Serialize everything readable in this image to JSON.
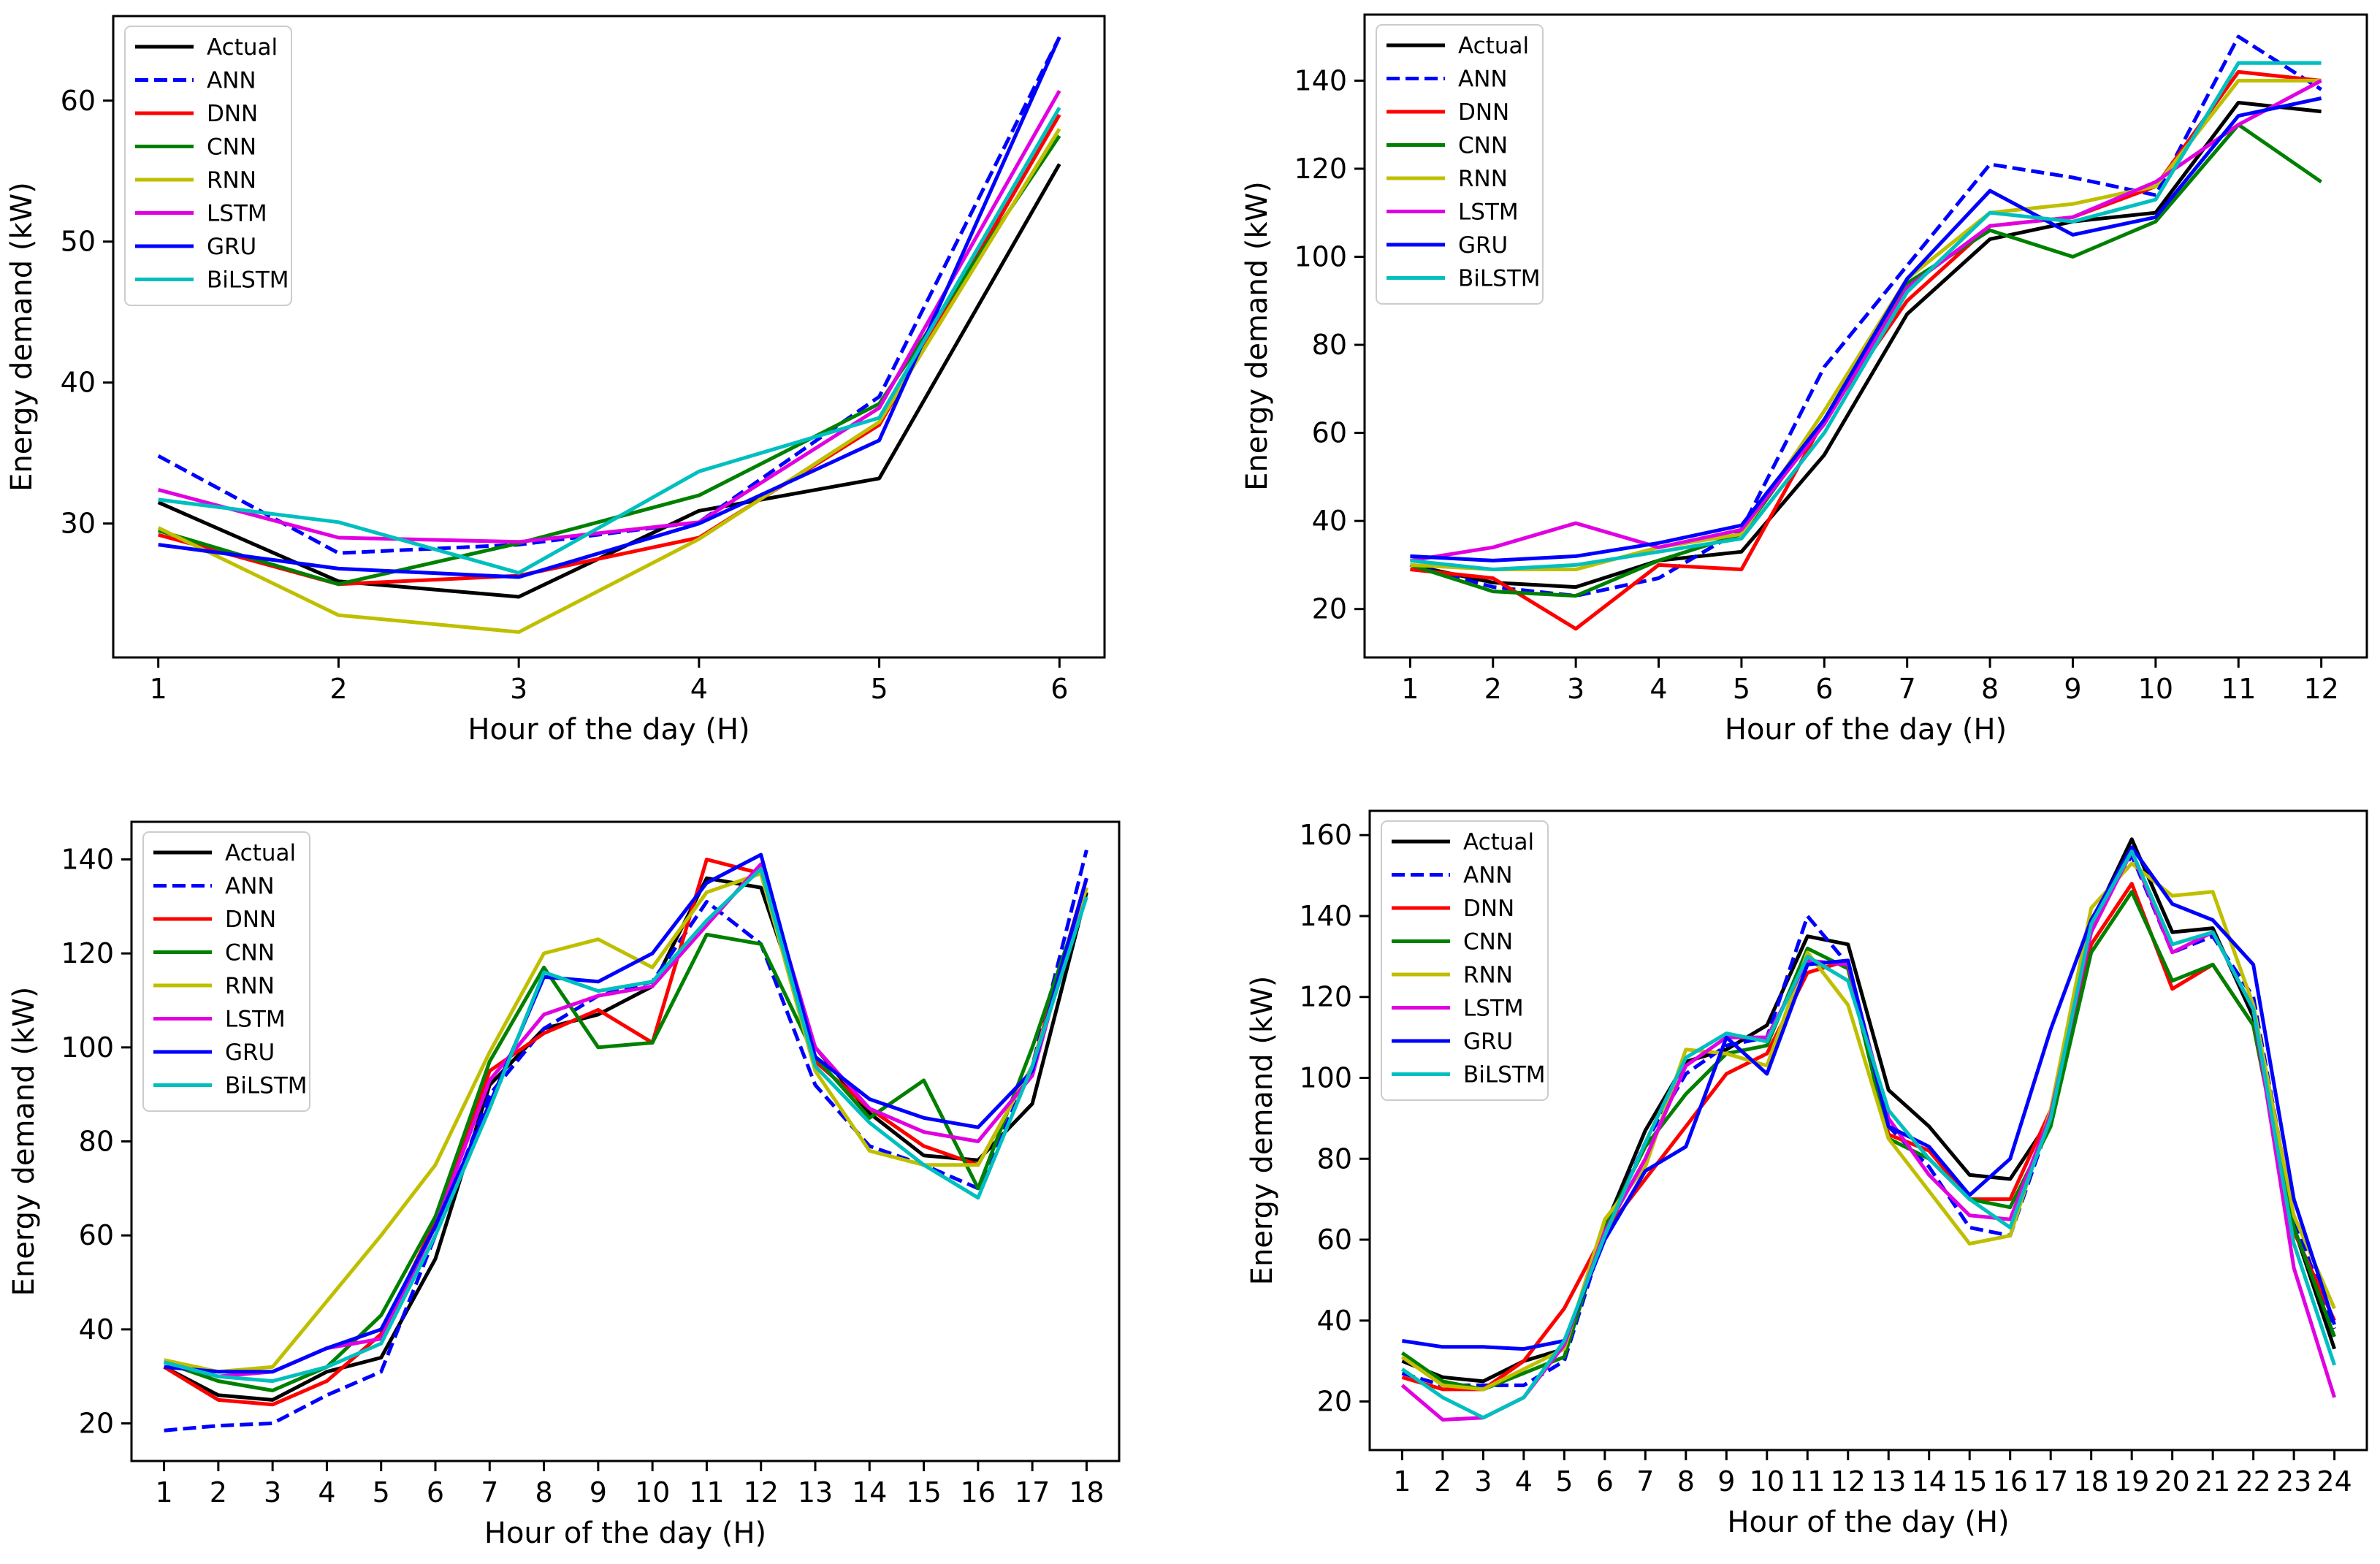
{
  "chart_data": [
    {
      "type": "line",
      "xlabel": "Hour of the day (H)",
      "ylabel": "Energy demand (kW)",
      "x": [
        1,
        2,
        3,
        4,
        5,
        6
      ],
      "xlim": [
        0.75,
        6.25
      ],
      "ylim": [
        20.5,
        66
      ],
      "yticks": [
        30,
        40,
        50,
        60
      ],
      "legend_loc": "upper-left",
      "series": [
        {
          "name": "Actual",
          "values": [
            31.5,
            25.9,
            24.8,
            30.9,
            33.2,
            55.5
          ]
        },
        {
          "name": "ANN",
          "values": [
            34.8,
            27.9,
            28.5,
            30.1,
            39.0,
            64.5
          ]
        },
        {
          "name": "DNN",
          "values": [
            29.2,
            25.7,
            26.3,
            29.0,
            37.0,
            59.0
          ]
        },
        {
          "name": "CNN",
          "values": [
            29.5,
            25.7,
            28.6,
            32.0,
            38.5,
            57.5
          ]
        },
        {
          "name": "RNN",
          "values": [
            29.7,
            23.5,
            22.3,
            28.9,
            37.2,
            58.0
          ]
        },
        {
          "name": "LSTM",
          "values": [
            32.4,
            29.0,
            28.7,
            30.1,
            38.2,
            60.7
          ]
        },
        {
          "name": "GRU",
          "values": [
            28.5,
            26.8,
            26.2,
            30.0,
            35.9,
            64.5
          ]
        },
        {
          "name": "BiLSTM",
          "values": [
            31.7,
            30.1,
            26.5,
            33.7,
            37.5,
            59.5
          ]
        }
      ]
    },
    {
      "type": "line",
      "xlabel": "Hour of the day (H)",
      "ylabel": "Energy demand (kW)",
      "x": [
        1,
        2,
        3,
        4,
        5,
        6,
        7,
        8,
        9,
        10,
        11,
        12
      ],
      "xlim": [
        0.45,
        12.55
      ],
      "ylim": [
        9,
        155
      ],
      "yticks": [
        20,
        40,
        60,
        80,
        100,
        120,
        140
      ],
      "legend_loc": "upper-left",
      "series": [
        {
          "name": "Actual",
          "values": [
            30,
            26,
            25,
            31,
            33,
            55,
            87,
            104,
            108,
            110,
            135,
            133
          ]
        },
        {
          "name": "ANN",
          "values": [
            30,
            25,
            23,
            27,
            38,
            75,
            98,
            121,
            118,
            114,
            150,
            138
          ]
        },
        {
          "name": "DNN",
          "values": [
            29,
            27,
            15.5,
            30,
            29,
            63,
            90,
            107,
            109,
            116,
            142,
            140
          ]
        },
        {
          "name": "CNN",
          "values": [
            30,
            24,
            23,
            31,
            37,
            63,
            94,
            106,
            100,
            108,
            130,
            117
          ]
        },
        {
          "name": "RNN",
          "values": [
            30,
            29,
            29,
            34,
            37,
            65,
            95,
            110,
            112,
            116,
            140,
            140
          ]
        },
        {
          "name": "LSTM",
          "values": [
            31,
            34,
            39.5,
            34,
            38,
            62,
            93,
            107,
            109,
            117,
            130,
            140
          ]
        },
        {
          "name": "GRU",
          "values": [
            32,
            31,
            32,
            35,
            39,
            63,
            95,
            115,
            105,
            109,
            132,
            136
          ]
        },
        {
          "name": "BiLSTM",
          "values": [
            31,
            29,
            30,
            33,
            36,
            60,
            92,
            110,
            108,
            113,
            144,
            144
          ]
        }
      ]
    },
    {
      "type": "line",
      "xlabel": "Hour of the day (H)",
      "ylabel": "Energy demand (kW)",
      "x": [
        1,
        2,
        3,
        4,
        5,
        6,
        7,
        8,
        9,
        10,
        11,
        12,
        13,
        14,
        15,
        16,
        17,
        18
      ],
      "xlim": [
        0.4,
        18.6
      ],
      "ylim": [
        12,
        148
      ],
      "yticks": [
        20,
        40,
        60,
        80,
        100,
        120,
        140
      ],
      "legend_loc": "upper-left",
      "series": [
        {
          "name": "Actual",
          "values": [
            32,
            26,
            25,
            31,
            34,
            55,
            92,
            104,
            107,
            113,
            136,
            134,
            100,
            86,
            77,
            76,
            88,
            133
          ]
        },
        {
          "name": "ANN",
          "values": [
            18.5,
            19.5,
            20,
            26,
            31,
            60,
            90,
            104,
            111,
            114,
            131,
            122,
            92,
            79,
            75,
            70,
            96,
            142
          ]
        },
        {
          "name": "DNN",
          "values": [
            32,
            25,
            24,
            29,
            39,
            63,
            95,
            103,
            108,
            101,
            140,
            137,
            97,
            87,
            79,
            75,
            96,
            136
          ]
        },
        {
          "name": "CNN",
          "values": [
            33,
            29,
            27,
            32,
            43,
            64,
            97,
            117,
            100,
            101,
            124,
            122,
            98,
            85,
            93,
            70,
            100,
            134
          ]
        },
        {
          "name": "RNN",
          "values": [
            33.5,
            31,
            32,
            46,
            60,
            75,
            99,
            120,
            123,
            117,
            133,
            137,
            95,
            78,
            75,
            75,
            96,
            134
          ]
        },
        {
          "name": "LSTM",
          "values": [
            33,
            30,
            31,
            36,
            38,
            62,
            93,
            107,
            111,
            113,
            126,
            139,
            100,
            87,
            82,
            80,
            94,
            136
          ]
        },
        {
          "name": "GRU",
          "values": [
            32,
            31,
            31,
            36,
            40,
            62,
            88,
            115,
            114,
            120,
            135,
            141,
            98,
            89,
            85,
            83,
            95,
            136
          ]
        },
        {
          "name": "BiLSTM",
          "values": [
            33,
            30,
            29,
            32,
            37,
            60,
            87,
            116,
            112,
            114,
            127,
            138,
            96,
            84,
            75,
            68,
            96,
            132
          ]
        }
      ]
    },
    {
      "type": "line",
      "xlabel": "Hour of the day (H)",
      "ylabel": "Energy demand (kW)",
      "x": [
        1,
        2,
        3,
        4,
        5,
        6,
        7,
        8,
        9,
        10,
        11,
        12,
        13,
        14,
        15,
        16,
        17,
        18,
        19,
        20,
        21,
        22,
        23,
        24
      ],
      "xlim": [
        0.2,
        24.8
      ],
      "ylim": [
        8,
        166
      ],
      "yticks": [
        20,
        40,
        60,
        80,
        100,
        120,
        140,
        160
      ],
      "legend_loc": "upper-left",
      "series": [
        {
          "name": "Actual",
          "values": [
            30,
            26,
            25,
            30,
            33,
            63,
            87,
            104,
            107,
            113,
            135,
            133,
            97,
            88,
            76,
            75,
            90,
            138,
            159,
            136,
            137,
            115,
            63,
            33
          ]
        },
        {
          "name": "ANN",
          "values": [
            27,
            24,
            24,
            24,
            30,
            62,
            84,
            101,
            108,
            110,
            140,
            128,
            88,
            78,
            63,
            61,
            90,
            138,
            155,
            131,
            135,
            120,
            65,
            38
          ]
        },
        {
          "name": "DNN",
          "values": [
            26,
            23,
            23,
            30,
            43,
            62,
            75,
            88,
            101,
            106,
            126,
            129,
            86,
            82,
            70,
            70,
            92,
            133,
            148,
            122,
            128,
            113,
            62,
            40
          ]
        },
        {
          "name": "CNN",
          "values": [
            32,
            25,
            23,
            27,
            31,
            63,
            83,
            96,
            106,
            108,
            132,
            127,
            85,
            80,
            70,
            68,
            88,
            131,
            146,
            124,
            128,
            113,
            63,
            36
          ]
        },
        {
          "name": "RNN",
          "values": [
            31,
            24,
            23,
            28,
            33,
            65,
            78,
            107,
            106,
            103,
            131,
            118,
            85,
            72,
            59,
            61,
            92,
            142,
            153,
            145,
            146,
            118,
            66,
            43
          ]
        },
        {
          "name": "LSTM",
          "values": [
            24,
            15.5,
            16,
            21,
            34,
            62,
            80,
            103,
            110,
            110,
            129,
            128,
            90,
            76,
            66,
            65,
            91,
            136,
            156,
            131,
            136,
            117,
            53,
            21
          ]
        },
        {
          "name": "GRU",
          "values": [
            35,
            33.5,
            33.5,
            33,
            35,
            60,
            77,
            83,
            110,
            101,
            128,
            129,
            88,
            83,
            71,
            80,
            112,
            139,
            157,
            143,
            139,
            128,
            70,
            39
          ]
        },
        {
          "name": "BiLSTM",
          "values": [
            28,
            21,
            16,
            21,
            35,
            61,
            84,
            105,
            111,
            109,
            130,
            124,
            92,
            80,
            70,
            63,
            90,
            138,
            156,
            133,
            136,
            117,
            59,
            29
          ]
        }
      ]
    }
  ],
  "legend": [
    {
      "name": "Actual",
      "color": "#000000",
      "dash": "solid"
    },
    {
      "name": "ANN",
      "color": "#0000ff",
      "dash": "dashed"
    },
    {
      "name": "DNN",
      "color": "#ff0000",
      "dash": "solid"
    },
    {
      "name": "CNN",
      "color": "#008000",
      "dash": "solid"
    },
    {
      "name": "RNN",
      "color": "#bfbf00",
      "dash": "solid"
    },
    {
      "name": "LSTM",
      "color": "#e000e0",
      "dash": "solid"
    },
    {
      "name": "GRU",
      "color": "#0000ff",
      "dash": "solid"
    },
    {
      "name": "BiLSTM",
      "color": "#00bfbf",
      "dash": "solid"
    }
  ]
}
